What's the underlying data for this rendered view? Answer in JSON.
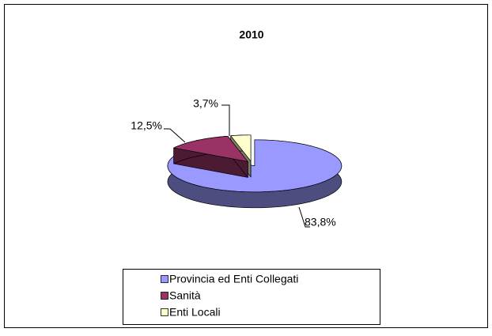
{
  "chart_data": {
    "type": "pie",
    "title": "2010",
    "categories": [
      "Provincia ed Enti Collegati",
      "Sanità",
      "Enti Locali"
    ],
    "values": [
      83.8,
      12.5,
      3.7
    ],
    "value_labels": [
      "83,8%",
      "12,5%",
      "3,7%"
    ],
    "colors": [
      "#9999ff",
      "#993366",
      "#ffffcc"
    ]
  }
}
